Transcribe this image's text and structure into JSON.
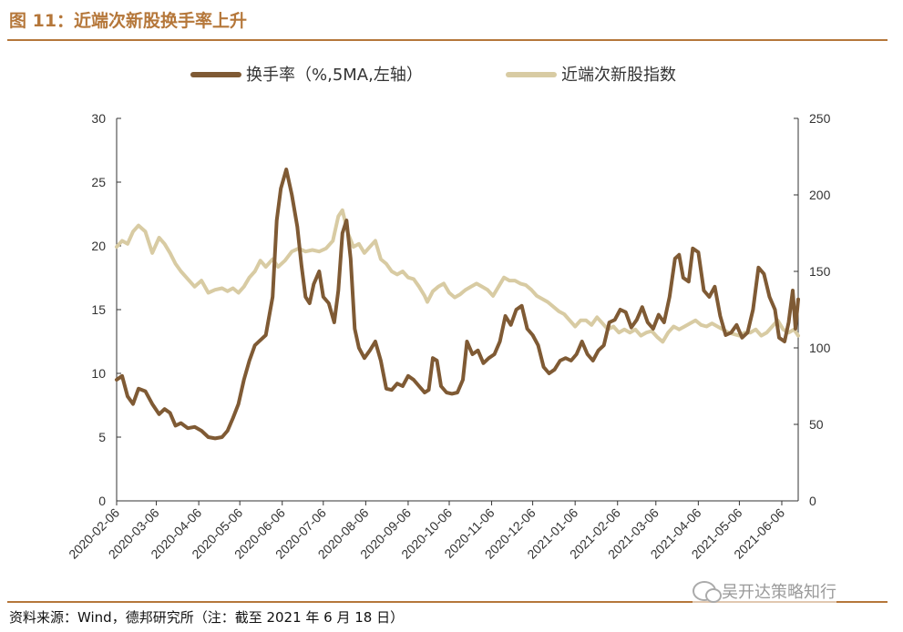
{
  "figure": {
    "title": "图 11：近端次新股换手率上升",
    "source": "资料来源：Wind，德邦研究所（注：截至 2021 年 6 月 18 日）",
    "watermark": "吴开达策略知行"
  },
  "colors": {
    "turnover": "#7f5a34",
    "index": "#d8cba3",
    "accent": "#b5773a"
  },
  "chart_data": {
    "type": "line",
    "title": "图 11：近端次新股换手率上升",
    "legend_position": "top",
    "grid": false,
    "x_tick_labels": [
      "2020-02-06",
      "2020-03-06",
      "2020-04-06",
      "2020-05-06",
      "2020-06-06",
      "2020-07-06",
      "2020-08-06",
      "2020-09-06",
      "2020-10-06",
      "2020-11-06",
      "2020-12-06",
      "2021-01-06",
      "2021-02-06",
      "2021-03-06",
      "2021-04-06",
      "2021-05-06",
      "2021-06-06"
    ],
    "x_range": [
      "2020-02-06",
      "2021-06-18"
    ],
    "y_left": {
      "ylim": [
        0,
        30
      ],
      "ticks": [
        0,
        5,
        10,
        15,
        20,
        25,
        30
      ]
    },
    "y_right": {
      "ylim": [
        0,
        250
      ],
      "ticks": [
        0,
        50,
        100,
        150,
        200,
        250
      ]
    },
    "series": [
      {
        "name": "换手率（%,5MA,左轴）",
        "axis": "left",
        "points": [
          [
            "2020-02-06",
            9.5
          ],
          [
            "2020-02-10",
            9.8
          ],
          [
            "2020-02-14",
            8.2
          ],
          [
            "2020-02-18",
            7.6
          ],
          [
            "2020-02-22",
            8.8
          ],
          [
            "2020-02-27",
            8.6
          ],
          [
            "2020-03-03",
            7.6
          ],
          [
            "2020-03-08",
            6.8
          ],
          [
            "2020-03-12",
            7.2
          ],
          [
            "2020-03-16",
            6.9
          ],
          [
            "2020-03-20",
            5.9
          ],
          [
            "2020-03-24",
            6.1
          ],
          [
            "2020-03-29",
            5.7
          ],
          [
            "2020-04-03",
            5.8
          ],
          [
            "2020-04-08",
            5.5
          ],
          [
            "2020-04-13",
            5.0
          ],
          [
            "2020-04-18",
            4.9
          ],
          [
            "2020-04-23",
            5.0
          ],
          [
            "2020-04-27",
            5.5
          ],
          [
            "2020-05-01",
            6.5
          ],
          [
            "2020-05-05",
            7.6
          ],
          [
            "2020-05-09",
            9.5
          ],
          [
            "2020-05-13",
            11.0
          ],
          [
            "2020-05-17",
            12.2
          ],
          [
            "2020-05-21",
            12.6
          ],
          [
            "2020-05-25",
            13.0
          ],
          [
            "2020-05-30",
            16.0
          ],
          [
            "2020-06-02",
            22.0
          ],
          [
            "2020-06-05",
            24.5
          ],
          [
            "2020-06-09",
            26.0
          ],
          [
            "2020-06-13",
            24.0
          ],
          [
            "2020-06-17",
            21.5
          ],
          [
            "2020-06-20",
            18.5
          ],
          [
            "2020-06-23",
            16.0
          ],
          [
            "2020-06-26",
            15.5
          ],
          [
            "2020-06-29",
            17.0
          ],
          [
            "2020-07-03",
            18.0
          ],
          [
            "2020-07-06",
            16.0
          ],
          [
            "2020-07-10",
            15.5
          ],
          [
            "2020-07-14",
            14.0
          ],
          [
            "2020-07-17",
            16.5
          ],
          [
            "2020-07-20",
            21.0
          ],
          [
            "2020-07-23",
            22.0
          ],
          [
            "2020-07-26",
            19.0
          ],
          [
            "2020-07-29",
            13.5
          ],
          [
            "2020-08-01",
            12.0
          ],
          [
            "2020-08-05",
            11.2
          ],
          [
            "2020-08-09",
            11.8
          ],
          [
            "2020-08-13",
            12.5
          ],
          [
            "2020-08-17",
            11.0
          ],
          [
            "2020-08-21",
            8.8
          ],
          [
            "2020-08-25",
            8.7
          ],
          [
            "2020-08-29",
            9.2
          ],
          [
            "2020-09-02",
            9.0
          ],
          [
            "2020-09-06",
            9.8
          ],
          [
            "2020-09-10",
            9.5
          ],
          [
            "2020-09-14",
            9.0
          ],
          [
            "2020-09-18",
            8.5
          ],
          [
            "2020-09-21",
            8.7
          ],
          [
            "2020-09-24",
            11.2
          ],
          [
            "2020-09-27",
            11.0
          ],
          [
            "2020-09-30",
            9.0
          ],
          [
            "2020-10-04",
            8.5
          ],
          [
            "2020-10-08",
            8.4
          ],
          [
            "2020-10-12",
            8.5
          ],
          [
            "2020-10-16",
            9.5
          ],
          [
            "2020-10-19",
            12.5
          ],
          [
            "2020-10-23",
            11.5
          ],
          [
            "2020-10-27",
            11.8
          ],
          [
            "2020-10-31",
            10.8
          ],
          [
            "2020-11-04",
            11.2
          ],
          [
            "2020-11-08",
            11.5
          ],
          [
            "2020-11-12",
            12.5
          ],
          [
            "2020-11-16",
            14.5
          ],
          [
            "2020-11-20",
            13.8
          ],
          [
            "2020-11-24",
            15.0
          ],
          [
            "2020-11-28",
            15.3
          ],
          [
            "2020-12-02",
            13.5
          ],
          [
            "2020-12-06",
            13.0
          ],
          [
            "2020-12-10",
            12.2
          ],
          [
            "2020-12-14",
            10.5
          ],
          [
            "2020-12-18",
            10.0
          ],
          [
            "2020-12-22",
            10.3
          ],
          [
            "2020-12-26",
            11.0
          ],
          [
            "2020-12-30",
            11.2
          ],
          [
            "2021-01-03",
            11.0
          ],
          [
            "2021-01-07",
            11.5
          ],
          [
            "2021-01-11",
            12.5
          ],
          [
            "2021-01-15",
            11.5
          ],
          [
            "2021-01-19",
            11.0
          ],
          [
            "2021-01-23",
            11.8
          ],
          [
            "2021-01-27",
            12.2
          ],
          [
            "2021-01-31",
            14.0
          ],
          [
            "2021-02-04",
            14.2
          ],
          [
            "2021-02-08",
            15.0
          ],
          [
            "2021-02-12",
            14.8
          ],
          [
            "2021-02-16",
            13.6
          ],
          [
            "2021-02-20",
            14.2
          ],
          [
            "2021-02-24",
            15.2
          ],
          [
            "2021-02-28",
            14.0
          ],
          [
            "2021-03-04",
            13.5
          ],
          [
            "2021-03-08",
            14.6
          ],
          [
            "2021-03-12",
            14.0
          ],
          [
            "2021-03-16",
            16.0
          ],
          [
            "2021-03-20",
            19.0
          ],
          [
            "2021-03-23",
            19.3
          ],
          [
            "2021-03-26",
            17.5
          ],
          [
            "2021-03-30",
            17.2
          ],
          [
            "2021-04-02",
            19.8
          ],
          [
            "2021-04-06",
            19.5
          ],
          [
            "2021-04-10",
            16.5
          ],
          [
            "2021-04-14",
            16.0
          ],
          [
            "2021-04-18",
            16.8
          ],
          [
            "2021-04-22",
            14.5
          ],
          [
            "2021-04-26",
            13.0
          ],
          [
            "2021-04-30",
            13.2
          ],
          [
            "2021-05-04",
            13.8
          ],
          [
            "2021-05-08",
            12.8
          ],
          [
            "2021-05-12",
            13.2
          ],
          [
            "2021-05-16",
            15.0
          ],
          [
            "2021-05-20",
            18.3
          ],
          [
            "2021-05-24",
            17.8
          ],
          [
            "2021-05-28",
            16.0
          ],
          [
            "2021-06-01",
            15.0
          ],
          [
            "2021-06-04",
            12.8
          ],
          [
            "2021-06-08",
            12.5
          ],
          [
            "2021-06-11",
            14.0
          ],
          [
            "2021-06-14",
            16.5
          ],
          [
            "2021-06-16",
            13.5
          ],
          [
            "2021-06-18",
            15.8
          ]
        ]
      },
      {
        "name": "近端次新股指数",
        "axis": "right",
        "points": [
          [
            "2020-02-06",
            166
          ],
          [
            "2020-02-10",
            170
          ],
          [
            "2020-02-14",
            168
          ],
          [
            "2020-02-18",
            176
          ],
          [
            "2020-02-22",
            180
          ],
          [
            "2020-02-27",
            176
          ],
          [
            "2020-03-03",
            162
          ],
          [
            "2020-03-08",
            172
          ],
          [
            "2020-03-12",
            168
          ],
          [
            "2020-03-16",
            162
          ],
          [
            "2020-03-20",
            155
          ],
          [
            "2020-03-24",
            150
          ],
          [
            "2020-03-29",
            145
          ],
          [
            "2020-04-03",
            140
          ],
          [
            "2020-04-08",
            144
          ],
          [
            "2020-04-13",
            136
          ],
          [
            "2020-04-18",
            138
          ],
          [
            "2020-04-23",
            139
          ],
          [
            "2020-04-27",
            137
          ],
          [
            "2020-05-01",
            139
          ],
          [
            "2020-05-05",
            136
          ],
          [
            "2020-05-09",
            140
          ],
          [
            "2020-05-13",
            146
          ],
          [
            "2020-05-17",
            150
          ],
          [
            "2020-05-21",
            157
          ],
          [
            "2020-05-25",
            153
          ],
          [
            "2020-05-30",
            158
          ],
          [
            "2020-06-03",
            153
          ],
          [
            "2020-06-08",
            157
          ],
          [
            "2020-06-13",
            163
          ],
          [
            "2020-06-18",
            165
          ],
          [
            "2020-06-23",
            163
          ],
          [
            "2020-06-28",
            164
          ],
          [
            "2020-07-03",
            163
          ],
          [
            "2020-07-08",
            165
          ],
          [
            "2020-07-13",
            170
          ],
          [
            "2020-07-17",
            186
          ],
          [
            "2020-07-20",
            190
          ],
          [
            "2020-07-24",
            175
          ],
          [
            "2020-07-28",
            166
          ],
          [
            "2020-08-01",
            168
          ],
          [
            "2020-08-05",
            162
          ],
          [
            "2020-08-09",
            166
          ],
          [
            "2020-08-13",
            170
          ],
          [
            "2020-08-17",
            158
          ],
          [
            "2020-08-21",
            155
          ],
          [
            "2020-08-25",
            150
          ],
          [
            "2020-08-29",
            148
          ],
          [
            "2020-09-02",
            150
          ],
          [
            "2020-09-06",
            146
          ],
          [
            "2020-09-10",
            145
          ],
          [
            "2020-09-14",
            140
          ],
          [
            "2020-09-18",
            134
          ],
          [
            "2020-09-20",
            130
          ],
          [
            "2020-09-24",
            137
          ],
          [
            "2020-09-28",
            140
          ],
          [
            "2020-10-02",
            142
          ],
          [
            "2020-10-06",
            136
          ],
          [
            "2020-10-10",
            133
          ],
          [
            "2020-10-14",
            135
          ],
          [
            "2020-10-18",
            138
          ],
          [
            "2020-10-22",
            140
          ],
          [
            "2020-10-26",
            142
          ],
          [
            "2020-10-30",
            140
          ],
          [
            "2020-11-03",
            138
          ],
          [
            "2020-11-07",
            134
          ],
          [
            "2020-11-11",
            140
          ],
          [
            "2020-11-15",
            146
          ],
          [
            "2020-11-19",
            144
          ],
          [
            "2020-11-23",
            144
          ],
          [
            "2020-11-27",
            142
          ],
          [
            "2020-12-01",
            141
          ],
          [
            "2020-12-05",
            138
          ],
          [
            "2020-12-09",
            134
          ],
          [
            "2020-12-13",
            132
          ],
          [
            "2020-12-17",
            130
          ],
          [
            "2020-12-21",
            127
          ],
          [
            "2020-12-25",
            124
          ],
          [
            "2020-12-29",
            122
          ],
          [
            "2021-01-02",
            118
          ],
          [
            "2021-01-06",
            114
          ],
          [
            "2021-01-10",
            118
          ],
          [
            "2021-01-14",
            118
          ],
          [
            "2021-01-18",
            115
          ],
          [
            "2021-01-22",
            120
          ],
          [
            "2021-01-26",
            116
          ],
          [
            "2021-01-30",
            112
          ],
          [
            "2021-02-03",
            114
          ],
          [
            "2021-02-07",
            110
          ],
          [
            "2021-02-11",
            112
          ],
          [
            "2021-02-15",
            110
          ],
          [
            "2021-02-19",
            112
          ],
          [
            "2021-02-23",
            108
          ],
          [
            "2021-02-27",
            110
          ],
          [
            "2021-03-03",
            111
          ],
          [
            "2021-03-07",
            107
          ],
          [
            "2021-03-11",
            104
          ],
          [
            "2021-03-15",
            110
          ],
          [
            "2021-03-19",
            114
          ],
          [
            "2021-03-23",
            112
          ],
          [
            "2021-03-27",
            114
          ],
          [
            "2021-03-31",
            116
          ],
          [
            "2021-04-04",
            118
          ],
          [
            "2021-04-08",
            115
          ],
          [
            "2021-04-12",
            114
          ],
          [
            "2021-04-16",
            116
          ],
          [
            "2021-04-20",
            114
          ],
          [
            "2021-04-24",
            112
          ],
          [
            "2021-04-28",
            110
          ],
          [
            "2021-05-02",
            109
          ],
          [
            "2021-05-06",
            108
          ],
          [
            "2021-05-10",
            110
          ],
          [
            "2021-05-14",
            110
          ],
          [
            "2021-05-18",
            112
          ],
          [
            "2021-05-22",
            108
          ],
          [
            "2021-05-26",
            110
          ],
          [
            "2021-05-30",
            114
          ],
          [
            "2021-06-03",
            118
          ],
          [
            "2021-06-07",
            112
          ],
          [
            "2021-06-11",
            110
          ],
          [
            "2021-06-15",
            112
          ],
          [
            "2021-06-18",
            108
          ]
        ]
      }
    ]
  }
}
